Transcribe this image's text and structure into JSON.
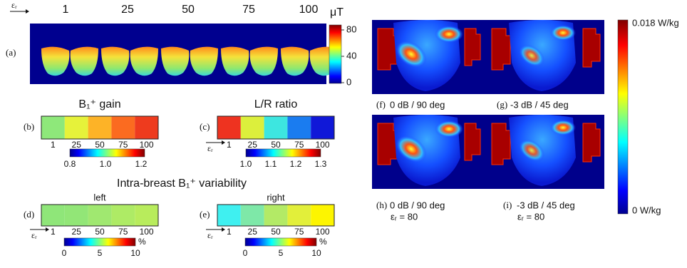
{
  "panel_a": {
    "label": "(a)",
    "axis_symbol": "εᵣ",
    "columns": [
      "1",
      "25",
      "50",
      "75",
      "100"
    ],
    "unit": "μT",
    "colorbar_ticks": [
      "80",
      "40",
      "0"
    ]
  },
  "panel_b": {
    "label": "(b)",
    "title": "B₁⁺ gain",
    "columns": [
      "1",
      "25",
      "50",
      "75",
      "100"
    ],
    "colors": [
      "#8ee87a",
      "#e6f23a",
      "#fdb327",
      "#fb6b20",
      "#ee3b1e"
    ],
    "colorbar_ticks": [
      "0.8",
      "1.0",
      "1.2"
    ]
  },
  "panel_c": {
    "label": "(c)",
    "title": "L/R ratio",
    "axis_symbol": "εᵣ",
    "columns": [
      "1",
      "25",
      "50",
      "75",
      "100"
    ],
    "colors": [
      "#ee3320",
      "#dcef3c",
      "#3de6e0",
      "#1a7cf0",
      "#1018d8"
    ],
    "colorbar_ticks": [
      "1.0",
      "1.1",
      "1.2",
      "1.3"
    ]
  },
  "variability_title": "Intra-breast B₁⁺ variability",
  "panel_d": {
    "label": "(d)",
    "subtitle": "left",
    "axis_symbol": "εᵣ",
    "columns": [
      "1",
      "25",
      "50",
      "75",
      "100"
    ],
    "colors": [
      "#8fe679",
      "#92e677",
      "#a0e870",
      "#aeeb65",
      "#b8ec5c"
    ],
    "colorbar_ticks": [
      "0",
      "5",
      "10"
    ],
    "colorbar_unit": "%"
  },
  "panel_e": {
    "label": "(e)",
    "subtitle": "right",
    "axis_symbol": "εᵣ",
    "columns": [
      "1",
      "25",
      "50",
      "75",
      "100"
    ],
    "colors": [
      "#3ff0f0",
      "#7ee8a8",
      "#b3ea66",
      "#e2ef3a",
      "#fdf500"
    ],
    "colorbar_ticks": [
      "0",
      "5",
      "10"
    ],
    "colorbar_unit": "%"
  },
  "sar_panels": [
    {
      "label": "(f)",
      "caption": "0 dB / 90 deg"
    },
    {
      "label": "(g)",
      "caption": "-3 dB / 45 deg"
    },
    {
      "label": "(h)",
      "caption": "0 dB / 90 deg",
      "note": "εᵣ = 80"
    },
    {
      "label": "(i)",
      "caption": "-3 dB / 45 deg",
      "note": "εᵣ = 80"
    }
  ],
  "sar_colorbar": {
    "max_label": "0.018 W/kg",
    "min_label": "0 W/kg"
  }
}
